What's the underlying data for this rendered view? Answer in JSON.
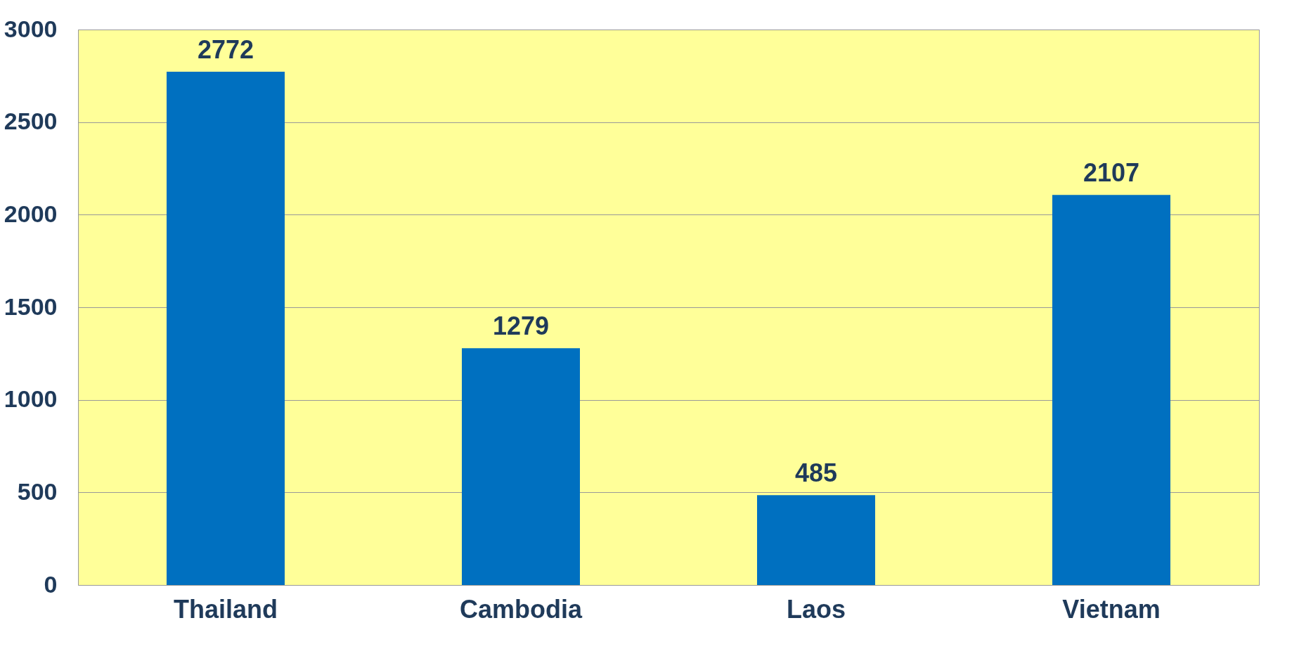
{
  "chart_data": {
    "type": "bar",
    "categories": [
      "Thailand",
      "Cambodia",
      "Laos",
      "Vietnam"
    ],
    "values": [
      2772,
      1279,
      485,
      2107
    ],
    "color": "#0070c0",
    "ylim": [
      0,
      3000
    ],
    "yticks": [
      0,
      500,
      1000,
      1500,
      2000,
      2500,
      3000
    ],
    "grid": "y",
    "data_labels": true
  }
}
